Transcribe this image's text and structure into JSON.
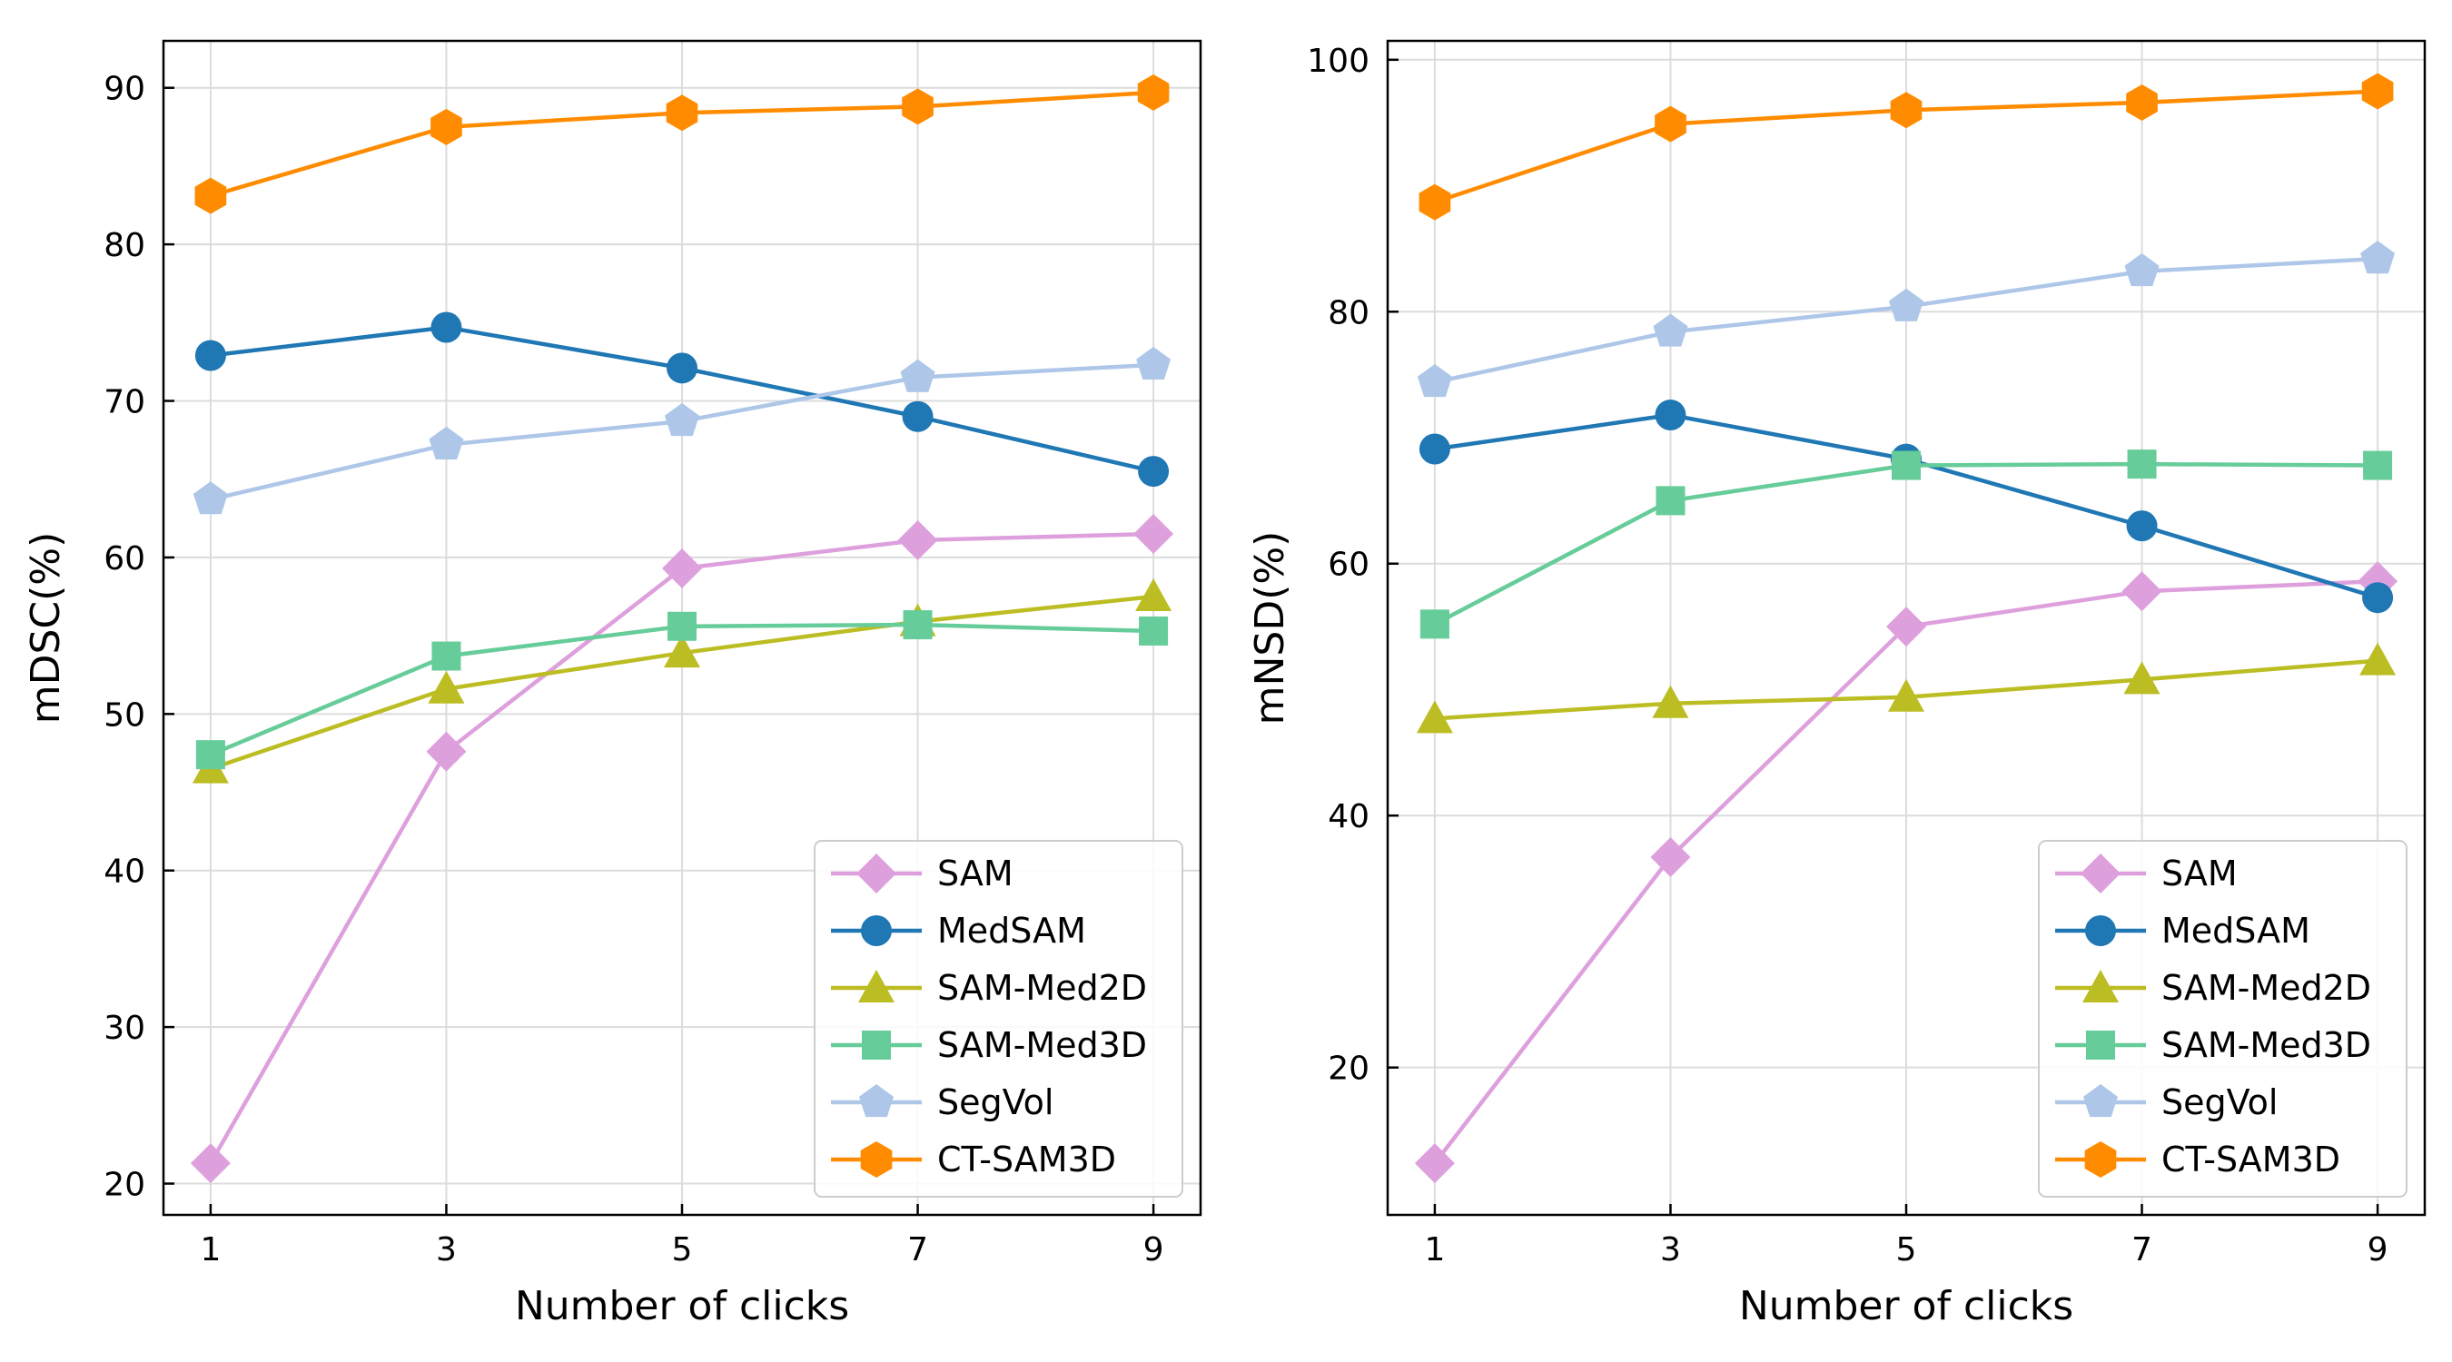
{
  "chart_data": [
    {
      "type": "line",
      "xlabel": "Number of clicks",
      "ylabel": "mDSC(%)",
      "x": [
        1,
        3,
        5,
        7,
        9
      ],
      "xlim": [
        0.6,
        9.4
      ],
      "ylim": [
        18,
        93
      ],
      "xticks": [
        1,
        3,
        5,
        7,
        9
      ],
      "yticks": [
        20,
        30,
        40,
        50,
        60,
        70,
        80,
        90
      ],
      "grid": true,
      "legend_position": "lower-right",
      "series": [
        {
          "name": "SAM",
          "values": [
            21.3,
            47.6,
            59.3,
            61.1,
            61.5
          ],
          "color": "#dda0dd",
          "marker": "diamond"
        },
        {
          "name": "MedSAM",
          "values": [
            72.9,
            74.7,
            72.1,
            69.0,
            65.5
          ],
          "color": "#1f77b4",
          "marker": "circle"
        },
        {
          "name": "SAM-Med2D",
          "values": [
            46.5,
            51.6,
            53.9,
            55.9,
            57.5
          ],
          "color": "#bcbd22",
          "marker": "triangle"
        },
        {
          "name": "SAM-Med3D",
          "values": [
            47.4,
            53.7,
            55.6,
            55.7,
            55.3
          ],
          "color": "#66cc99",
          "marker": "square"
        },
        {
          "name": "SegVol",
          "values": [
            63.7,
            67.2,
            68.7,
            71.5,
            72.3
          ],
          "color": "#aec7e8",
          "marker": "pentagon"
        },
        {
          "name": "CT-SAM3D",
          "values": [
            83.1,
            87.5,
            88.4,
            88.8,
            89.7
          ],
          "color": "#ff8c00",
          "marker": "hexagon"
        }
      ]
    },
    {
      "type": "line",
      "xlabel": "Number of clicks",
      "ylabel": "mNSD(%)",
      "x": [
        1,
        3,
        5,
        7,
        9
      ],
      "xlim": [
        0.6,
        9.4
      ],
      "ylim": [
        8.3,
        101.5
      ],
      "xticks": [
        1,
        3,
        5,
        7,
        9
      ],
      "yticks": [
        20,
        40,
        60,
        80,
        100
      ],
      "grid": true,
      "legend_position": "lower-right",
      "series": [
        {
          "name": "SAM",
          "values": [
            12.4,
            36.7,
            55.0,
            57.8,
            58.6
          ],
          "color": "#dda0dd",
          "marker": "diamond"
        },
        {
          "name": "MedSAM",
          "values": [
            69.1,
            71.8,
            68.3,
            63.0,
            57.3
          ],
          "color": "#1f77b4",
          "marker": "circle"
        },
        {
          "name": "SAM-Med2D",
          "values": [
            47.7,
            48.9,
            49.4,
            50.8,
            52.3
          ],
          "color": "#bcbd22",
          "marker": "triangle"
        },
        {
          "name": "SAM-Med3D",
          "values": [
            55.2,
            65.0,
            67.8,
            67.9,
            67.8
          ],
          "color": "#66cc99",
          "marker": "square"
        },
        {
          "name": "SegVol",
          "values": [
            74.4,
            78.4,
            80.4,
            83.2,
            84.2
          ],
          "color": "#aec7e8",
          "marker": "pentagon"
        },
        {
          "name": "CT-SAM3D",
          "values": [
            88.7,
            94.9,
            96.0,
            96.6,
            97.5
          ],
          "color": "#ff8c00",
          "marker": "hexagon"
        }
      ]
    }
  ]
}
